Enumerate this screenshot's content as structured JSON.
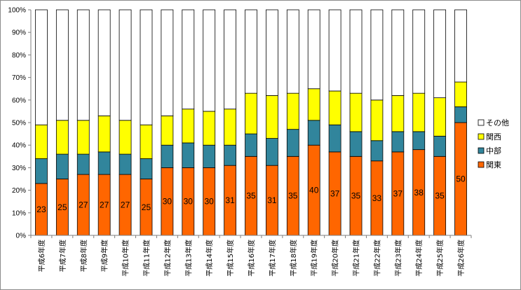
{
  "chart_data": {
    "type": "bar",
    "stacked": true,
    "percent": true,
    "ylim": [
      0,
      100
    ],
    "y_ticks": [
      "0%",
      "10%",
      "20%",
      "30%",
      "40%",
      "50%",
      "60%",
      "70%",
      "80%",
      "90%",
      "100%"
    ],
    "categories": [
      "平成6年度",
      "平成7年度",
      "平成8年度",
      "平成9年度",
      "平成10年度",
      "平成11年度",
      "平成12年度",
      "平成13年度",
      "平成14年度",
      "平成15年度",
      "平成16年度",
      "平成17年度",
      "平成18年度",
      "平成19年度",
      "平成20年度",
      "平成21年度",
      "平成22年度",
      "平成23年度",
      "平成24年度",
      "平成25年度",
      "平成26年度"
    ],
    "series": [
      {
        "name": "関東",
        "color": "#ff6600",
        "values": [
          23,
          25,
          27,
          27,
          27,
          25,
          30,
          30,
          30,
          31,
          35,
          31,
          35,
          40,
          37,
          35,
          33,
          37,
          38,
          35,
          50
        ]
      },
      {
        "name": "中部",
        "color": "#31859c",
        "values": [
          11,
          11,
          9,
          10,
          9,
          9,
          10,
          11,
          10,
          9,
          10,
          12,
          12,
          11,
          12,
          11,
          9,
          9,
          8,
          9,
          7
        ]
      },
      {
        "name": "関西",
        "color": "#ffff00",
        "values": [
          15,
          15,
          15,
          16,
          15,
          15,
          13,
          15,
          15,
          16,
          18,
          19,
          16,
          14,
          15,
          17,
          18,
          16,
          17,
          17,
          11
        ]
      },
      {
        "name": "その他",
        "color": "#ffffff",
        "values": [
          51,
          49,
          49,
          47,
          49,
          51,
          47,
          44,
          45,
          44,
          37,
          38,
          37,
          35,
          36,
          37,
          40,
          38,
          37,
          39,
          32
        ]
      }
    ],
    "data_labels": [
      "23",
      "25",
      "27",
      "27",
      "27",
      "25",
      "30",
      "30",
      "30",
      "31",
      "35",
      "31",
      "35",
      "40",
      "37",
      "35",
      "33",
      "37",
      "38",
      "35",
      "50"
    ],
    "legend": {
      "position": "right",
      "order": [
        "その他",
        "関西",
        "中部",
        "関東"
      ]
    }
  }
}
